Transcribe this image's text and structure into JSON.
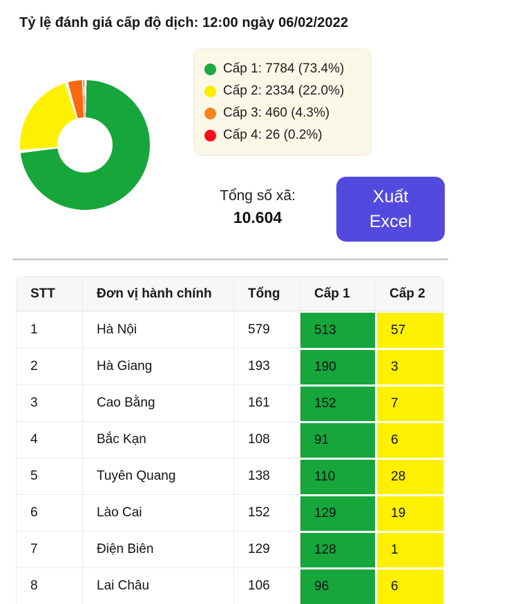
{
  "page_title": "Tỷ lệ đánh giá cấp độ dịch: 12:00 ngày 06/02/2022",
  "chart_data": {
    "type": "pie",
    "title": "Tỷ lệ đánh giá cấp độ dịch",
    "labels": [
      "Cấp 1",
      "Cấp 2",
      "Cấp 3",
      "Cấp 4"
    ],
    "values": [
      7784,
      2334,
      460,
      26
    ],
    "percents": [
      73.4,
      22.0,
      4.3,
      0.2
    ],
    "colors": [
      "#16a63c",
      "#fdf000",
      "#f9690e",
      "#f81423"
    ],
    "donut": true,
    "legend_position": "right"
  },
  "legend": {
    "items": [
      {
        "color": "#1fa83e",
        "text": "Cấp 1: 7784 (73.4%)"
      },
      {
        "color": "#fdee00",
        "text": "Cấp 2: 2334 (22.0%)"
      },
      {
        "color": "#f9821c",
        "text": "Cấp 3: 460 (4.3%)"
      },
      {
        "color": "#fb0d1b",
        "text": "Cấp 4: 26 (0.2%)"
      }
    ]
  },
  "summary": {
    "total_label": "Tổng số xã:",
    "total_value": "10.604"
  },
  "export_button": {
    "line1": "Xuất",
    "line2": "Excel"
  },
  "table": {
    "headers": [
      "STT",
      "Đơn vị hành chính",
      "Tổng",
      "Cấp 1",
      "Cấp 2"
    ],
    "rows": [
      [
        "1",
        "Hà Nội",
        "579",
        "513",
        "57"
      ],
      [
        "2",
        "Hà Giang",
        "193",
        "190",
        "3"
      ],
      [
        "3",
        "Cao Bằng",
        "161",
        "152",
        "7"
      ],
      [
        "4",
        "Bắc Kạn",
        "108",
        "91",
        "6"
      ],
      [
        "5",
        "Tuyên Quang",
        "138",
        "110",
        "28"
      ],
      [
        "6",
        "Lào Cai",
        "152",
        "129",
        "19"
      ],
      [
        "7",
        "Điện Biên",
        "129",
        "128",
        "1"
      ],
      [
        "8",
        "Lai Châu",
        "106",
        "96",
        "6"
      ]
    ]
  }
}
